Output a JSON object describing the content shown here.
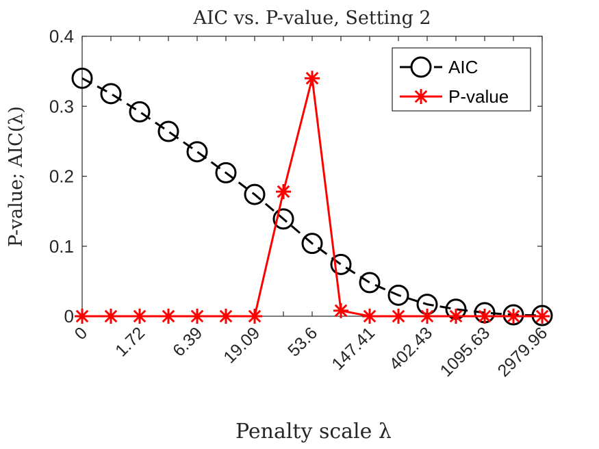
{
  "chart_data": {
    "type": "line",
    "title": "AIC vs. P-value, Setting 2",
    "xlabel": "Penalty scale λ",
    "ylabel": "P-value; AIC(λ)",
    "ylim": [
      0,
      0.4
    ],
    "yticks": [
      "0",
      "0.1",
      "0.2",
      "0.3",
      "0.4"
    ],
    "x_categories": [
      "0",
      "",
      "1.72",
      "",
      "6.39",
      "",
      "19.09",
      "",
      "53.6",
      "",
      "147.41",
      "",
      "402.43",
      "",
      "1095.63",
      "",
      "2979.96"
    ],
    "legend_position": "top-right",
    "series": [
      {
        "name": "AIC",
        "color": "#000000",
        "line_style": "dashed",
        "marker": "circle",
        "values": [
          0.34,
          0.318,
          0.292,
          0.264,
          0.235,
          0.205,
          0.174,
          0.139,
          0.104,
          0.074,
          0.048,
          0.03,
          0.017,
          0.01,
          0.005,
          0.002,
          0.001
        ]
      },
      {
        "name": "P-value",
        "color": "#ff0000",
        "line_style": "solid",
        "marker": "asterisk",
        "values": [
          0,
          0,
          0,
          0,
          0,
          0,
          0,
          0.178,
          0.34,
          0.008,
          0,
          0,
          0,
          0,
          0,
          0,
          0
        ]
      }
    ]
  }
}
